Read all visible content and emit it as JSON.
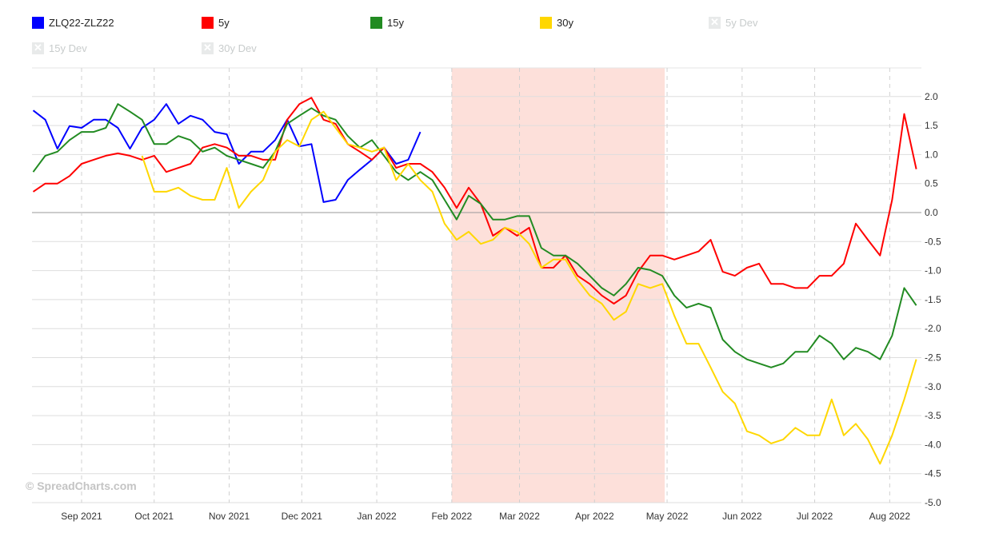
{
  "legend": [
    {
      "label": "ZLQ22-ZLZ22",
      "color": "#0000ff",
      "visible": true
    },
    {
      "label": "5y",
      "color": "#ff0000",
      "visible": true
    },
    {
      "label": "15y",
      "color": "#228b22",
      "visible": true
    },
    {
      "label": "30y",
      "color": "#ffd700",
      "visible": true
    },
    {
      "label": "5y Dev",
      "color": "#e8eaea",
      "visible": false
    },
    {
      "label": "15y Dev",
      "color": "#e8eaea",
      "visible": false
    },
    {
      "label": "30y Dev",
      "color": "#e8eaea",
      "visible": false
    }
  ],
  "watermark": "© SpreadCharts.com",
  "chart_data": {
    "type": "line",
    "title": "",
    "xlabel": "",
    "ylabel": "",
    "ylim": [
      -5.0,
      2.0
    ],
    "yticks": [
      "2.0",
      "1.5",
      "1.0",
      "0.5",
      "0.0",
      "-0.5",
      "-1.0",
      "-1.5",
      "-2.0",
      "-2.5",
      "-3.0",
      "-3.5",
      "-4.0",
      "-4.5",
      "-5.0"
    ],
    "xticks": [
      {
        "label": "Sep 2021",
        "date": "2021-09-01"
      },
      {
        "label": "Oct 2021",
        "date": "2021-10-01"
      },
      {
        "label": "Nov 2021",
        "date": "2021-11-01"
      },
      {
        "label": "Dec 2021",
        "date": "2021-12-01"
      },
      {
        "label": "Jan 2022",
        "date": "2022-01-01"
      },
      {
        "label": "Feb 2022",
        "date": "2022-02-01"
      },
      {
        "label": "Mar 2022",
        "date": "2022-03-01"
      },
      {
        "label": "Apr 2022",
        "date": "2022-04-01"
      },
      {
        "label": "May 2022",
        "date": "2022-05-01"
      },
      {
        "label": "Jun 2022",
        "date": "2022-06-01"
      },
      {
        "label": "Jul 2022",
        "date": "2022-07-01"
      },
      {
        "label": "Aug 2022",
        "date": "2022-08-01"
      }
    ],
    "x_range": [
      "2021-08-11",
      "2022-08-14"
    ],
    "highlight_band": {
      "from": "2022-02-01",
      "to": "2022-04-30",
      "color": "#fde0da"
    },
    "grid": true,
    "legend_position": "top",
    "step_days": 5,
    "series": [
      {
        "name": "ZLQ22-ZLZ22",
        "color": "#0000ff",
        "start": "2021-08-12",
        "values": [
          1.76,
          1.6,
          1.1,
          1.49,
          1.46,
          1.6,
          1.6,
          1.46,
          1.1,
          1.46,
          1.6,
          1.87,
          1.53,
          1.67,
          1.6,
          1.39,
          1.35,
          0.84,
          1.05,
          1.05,
          1.25,
          1.6,
          1.14,
          1.18,
          0.18,
          0.22,
          0.56,
          0.74,
          0.91,
          1.12,
          0.84,
          0.91,
          1.39
        ]
      },
      {
        "name": "5y",
        "color": "#ff0000",
        "start": "2021-08-12",
        "values": [
          0.36,
          0.5,
          0.5,
          0.63,
          0.84,
          0.91,
          0.98,
          1.02,
          0.98,
          0.91,
          0.98,
          0.7,
          0.77,
          0.84,
          1.12,
          1.18,
          1.12,
          0.98,
          0.98,
          0.91,
          0.91,
          1.6,
          1.87,
          1.98,
          1.6,
          1.53,
          1.18,
          1.05,
          0.91,
          1.12,
          0.77,
          0.84,
          0.84,
          0.7,
          0.43,
          0.08,
          0.43,
          0.15,
          -0.4,
          -0.26,
          -0.4,
          -0.26,
          -0.95,
          -0.95,
          -0.74,
          -1.09,
          -1.23,
          -1.43,
          -1.57,
          -1.43,
          -1.02,
          -0.74,
          -0.74,
          -0.81,
          -0.74,
          -0.67,
          -0.47,
          -1.02,
          -1.09,
          -0.95,
          -0.88,
          -1.23,
          -1.23,
          -1.3,
          -1.3,
          -1.09,
          -1.09,
          -0.88,
          -0.19,
          -0.47,
          -0.74,
          0.22,
          1.7,
          0.75
        ]
      },
      {
        "name": "15y",
        "color": "#228b22",
        "start": "2021-08-12",
        "values": [
          0.7,
          0.98,
          1.05,
          1.25,
          1.39,
          1.39,
          1.46,
          1.87,
          1.74,
          1.6,
          1.18,
          1.18,
          1.32,
          1.25,
          1.05,
          1.12,
          0.98,
          0.91,
          0.84,
          0.77,
          1.05,
          1.53,
          1.67,
          1.8,
          1.67,
          1.6,
          1.32,
          1.12,
          1.25,
          0.98,
          0.7,
          0.56,
          0.7,
          0.56,
          0.22,
          -0.12,
          0.29,
          0.15,
          -0.12,
          -0.12,
          -0.06,
          -0.06,
          -0.61,
          -0.74,
          -0.74,
          -0.88,
          -1.09,
          -1.3,
          -1.43,
          -1.23,
          -0.95,
          -0.99,
          -1.09,
          -1.43,
          -1.64,
          -1.57,
          -1.64,
          -2.19,
          -2.4,
          -2.53,
          -2.6,
          -2.67,
          -2.6,
          -2.4,
          -2.4,
          -2.12,
          -2.26,
          -2.53,
          -2.33,
          -2.4,
          -2.53,
          -2.12,
          -1.3,
          -1.6
        ]
      },
      {
        "name": "30y",
        "color": "#ffd700",
        "start": "2021-09-26",
        "values": [
          0.98,
          0.36,
          0.36,
          0.43,
          0.29,
          0.22,
          0.22,
          0.77,
          0.08,
          0.36,
          0.56,
          1.05,
          1.25,
          1.14,
          1.6,
          1.74,
          1.46,
          1.18,
          1.12,
          1.05,
          1.12,
          0.56,
          0.84,
          0.56,
          0.36,
          -0.19,
          -0.47,
          -0.33,
          -0.54,
          -0.47,
          -0.26,
          -0.33,
          -0.54,
          -0.95,
          -0.81,
          -0.81,
          -1.16,
          -1.43,
          -1.57,
          -1.85,
          -1.71,
          -1.23,
          -1.3,
          -1.23,
          -1.78,
          -2.26,
          -2.26,
          -2.67,
          -3.09,
          -3.29,
          -3.77,
          -3.84,
          -3.98,
          -3.91,
          -3.71,
          -3.84,
          -3.84,
          -3.22,
          -3.84,
          -3.64,
          -3.91,
          -4.33,
          -3.84,
          -3.22,
          -2.53
        ]
      }
    ]
  }
}
